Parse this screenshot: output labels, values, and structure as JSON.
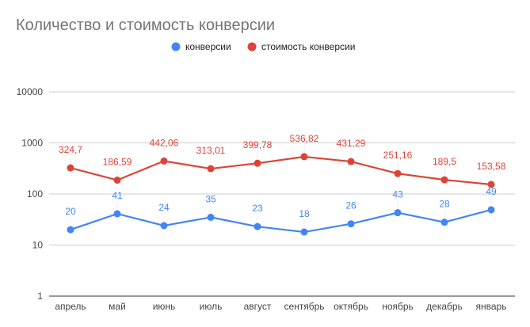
{
  "chart_data": {
    "type": "line",
    "title": "Количество и стоимость конверсии",
    "categories": [
      "апрель",
      "май",
      "июнь",
      "июль",
      "август",
      "сентябрь",
      "октябрь",
      "ноябрь",
      "декабрь",
      "январь"
    ],
    "y_scale": "log",
    "ylim": [
      1,
      10000
    ],
    "y_ticks": [
      "1",
      "10",
      "100",
      "1000",
      "10000"
    ],
    "grid": true,
    "legend_position": "top",
    "series": [
      {
        "name": "конверсии",
        "color": "#4285f4",
        "values": [
          20,
          41,
          24,
          35,
          23,
          18,
          26,
          43,
          28,
          49
        ],
        "labels": [
          "20",
          "41",
          "24",
          "35",
          "23",
          "18",
          "26",
          "43",
          "28",
          "49"
        ]
      },
      {
        "name": "стоимость конверсии",
        "color": "#db4437",
        "values": [
          324.7,
          186.59,
          442.06,
          313.01,
          399.78,
          536.82,
          431.29,
          251.16,
          189.5,
          153.58
        ],
        "labels": [
          "324,7",
          "186,59",
          "442,06",
          "313,01",
          "399,78",
          "536,82",
          "431,29",
          "251,16",
          "189,5",
          "153,58"
        ]
      }
    ]
  }
}
